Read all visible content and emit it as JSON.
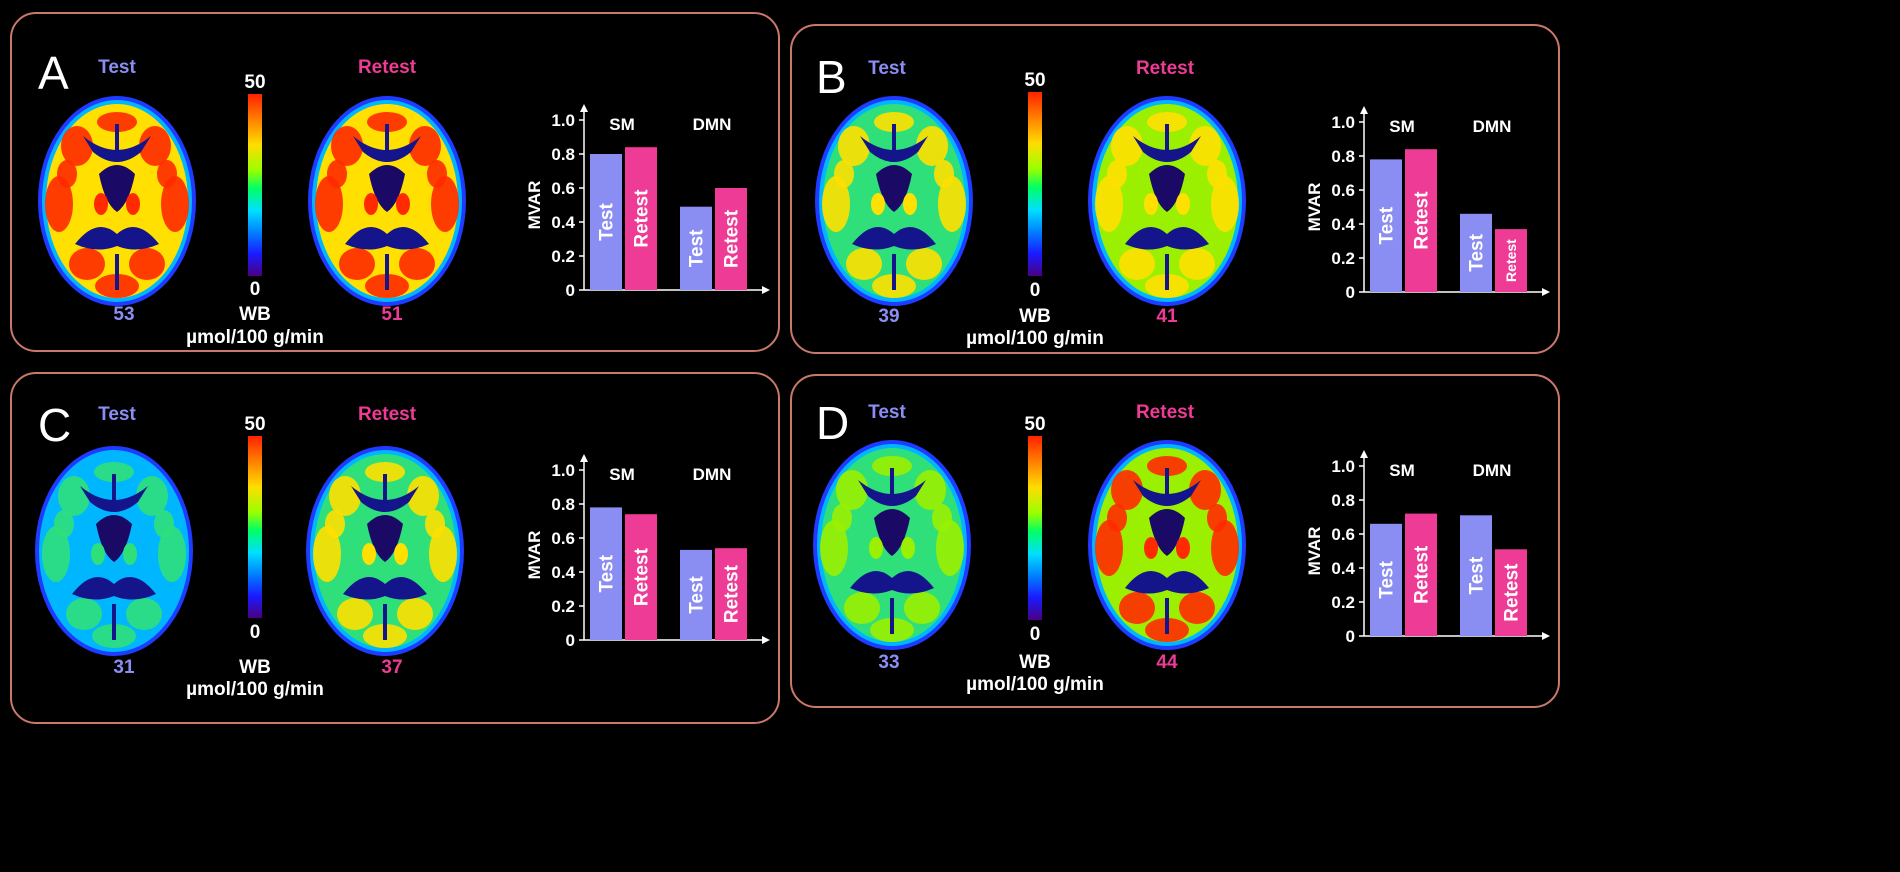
{
  "colors": {
    "test": "#8a8df2",
    "retest": "#ee3b96",
    "frame": "#c9786a"
  },
  "legend": {
    "test": "Test",
    "retest": "Retest",
    "wb": "WB",
    "unit": "µmol/100 g/min",
    "scale_max": "50",
    "scale_min": "0"
  },
  "panels": [
    {
      "letter": "A",
      "test_value": "53",
      "retest_value": "51",
      "level_test": 0.85,
      "level_retest": 0.82
    },
    {
      "letter": "B",
      "test_value": "39",
      "retest_value": "41",
      "level_test": 0.42,
      "level_retest": 0.48
    },
    {
      "letter": "C",
      "test_value": "31",
      "retest_value": "37",
      "level_test": 0.18,
      "level_retest": 0.4
    },
    {
      "letter": "D",
      "test_value": "33",
      "retest_value": "44",
      "level_test": 0.3,
      "level_retest": 0.65
    }
  ],
  "chart_data": [
    {
      "type": "bar",
      "panel": "A",
      "ylabel": "MVAR",
      "ylim": [
        0,
        1.0
      ],
      "yticks": [
        "0",
        "0.2",
        "0.4",
        "0.6",
        "0.8",
        "1.0"
      ],
      "categories": [
        "SM",
        "DMN"
      ],
      "series": [
        {
          "name": "Test",
          "values": [
            0.8,
            0.49
          ]
        },
        {
          "name": "Retest",
          "values": [
            0.84,
            0.6
          ]
        }
      ]
    },
    {
      "type": "bar",
      "panel": "B",
      "ylabel": "MVAR",
      "ylim": [
        0,
        1.0
      ],
      "yticks": [
        "0",
        "0.2",
        "0.4",
        "0.6",
        "0.8",
        "1.0"
      ],
      "categories": [
        "SM",
        "DMN"
      ],
      "series": [
        {
          "name": "Test",
          "values": [
            0.78,
            0.46
          ]
        },
        {
          "name": "Retest",
          "values": [
            0.84,
            0.37
          ]
        }
      ]
    },
    {
      "type": "bar",
      "panel": "C",
      "ylabel": "MVAR",
      "ylim": [
        0,
        1.0
      ],
      "yticks": [
        "0",
        "0.2",
        "0.4",
        "0.6",
        "0.8",
        "1.0"
      ],
      "categories": [
        "SM",
        "DMN"
      ],
      "series": [
        {
          "name": "Test",
          "values": [
            0.78,
            0.53
          ]
        },
        {
          "name": "Retest",
          "values": [
            0.74,
            0.54
          ]
        }
      ]
    },
    {
      "type": "bar",
      "panel": "D",
      "ylabel": "MVAR",
      "ylim": [
        0,
        1.0
      ],
      "yticks": [
        "0",
        "0.2",
        "0.4",
        "0.6",
        "0.8",
        "1.0"
      ],
      "categories": [
        "SM",
        "DMN"
      ],
      "series": [
        {
          "name": "Test",
          "values": [
            0.66,
            0.71
          ]
        },
        {
          "name": "Retest",
          "values": [
            0.72,
            0.51
          ]
        }
      ]
    }
  ]
}
